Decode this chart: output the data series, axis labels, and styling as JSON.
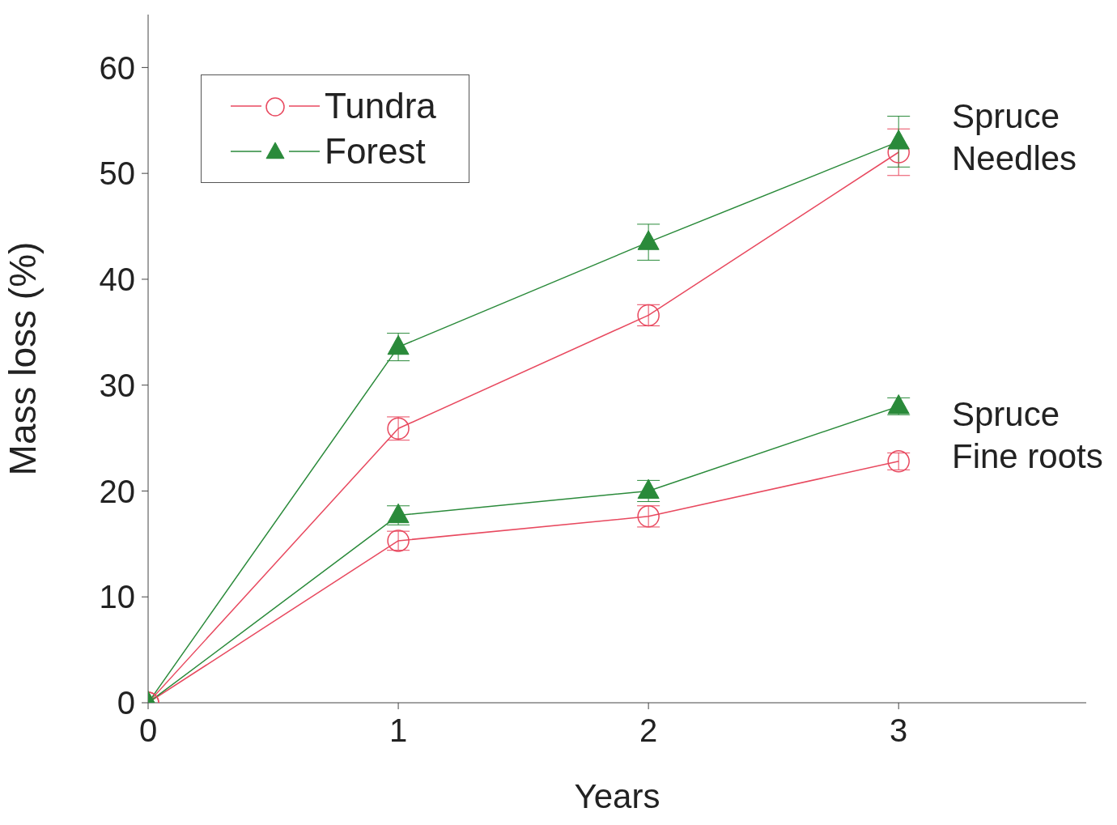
{
  "chart_data": {
    "type": "line",
    "xlabel": "Years",
    "ylabel": "Mass loss (%)",
    "xlim": [
      0,
      3.75
    ],
    "xticks": [
      0,
      1,
      2,
      3
    ],
    "ylim": [
      0,
      65
    ],
    "yticks": [
      0,
      10,
      20,
      30,
      40,
      50,
      60
    ],
    "legend": "top left",
    "line_style": "solid",
    "series": [
      {
        "name": "Tundra",
        "color": "#e8495f",
        "marker": "circle",
        "x": [
          0,
          1,
          2,
          3
        ],
        "values": [
          0,
          25.9,
          36.6,
          52.0
        ],
        "errors": [
          null,
          1.1,
          1.0,
          2.2
        ]
      },
      {
        "name": "Forest",
        "color": "#2a8a3a",
        "marker": "triangle",
        "x": [
          0,
          1,
          2,
          3
        ],
        "values": [
          0,
          33.6,
          43.5,
          53.0
        ],
        "errors": [
          null,
          1.3,
          1.7,
          2.4
        ]
      },
      {
        "color": "#e8495f",
        "marker": "circle",
        "x": [
          0,
          1,
          2,
          3
        ],
        "values": [
          0,
          15.3,
          17.6,
          22.8
        ],
        "errors": [
          null,
          0.9,
          1.0,
          0.8
        ]
      },
      {
        "color": "#2a8a3a",
        "marker": "triangle",
        "x": [
          0,
          1,
          2,
          3
        ],
        "values": [
          0,
          17.7,
          20.0,
          28.0
        ],
        "errors": [
          null,
          0.9,
          1.0,
          0.8
        ]
      }
    ],
    "annotations": [
      "Spruce\nNeedles",
      "Spruce\nFine roots"
    ]
  }
}
